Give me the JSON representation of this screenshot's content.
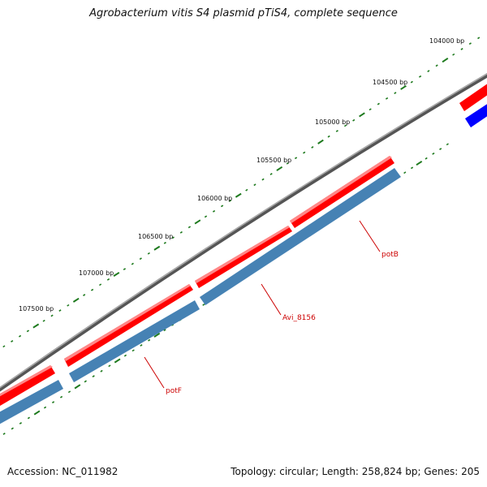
{
  "title": "Agrobacterium vitis S4 plasmid pTiS4, complete sequence",
  "accession_label": "Accession:",
  "accession": "NC_011982",
  "topology": "Topology: circular",
  "length": "Length: 258,824 bp",
  "genes": "Genes: 205",
  "scale_labels": [
    "104000 bp",
    "104500 bp",
    "105000 bp",
    "105500 bp",
    "106000 bp",
    "106500 bp",
    "107000 bp",
    "107500 bp"
  ],
  "gene_labels": [
    "potB",
    "Avi_8156",
    "potF"
  ],
  "colors": {
    "backbone": "#7a7a7a",
    "gene_forward": "#ff0000",
    "cds_strand": "#4682b4",
    "cds_other": "#0000ff",
    "ticks": "#1e7a1e",
    "label_line": "#cc0000",
    "label_text": "#cc0000"
  }
}
